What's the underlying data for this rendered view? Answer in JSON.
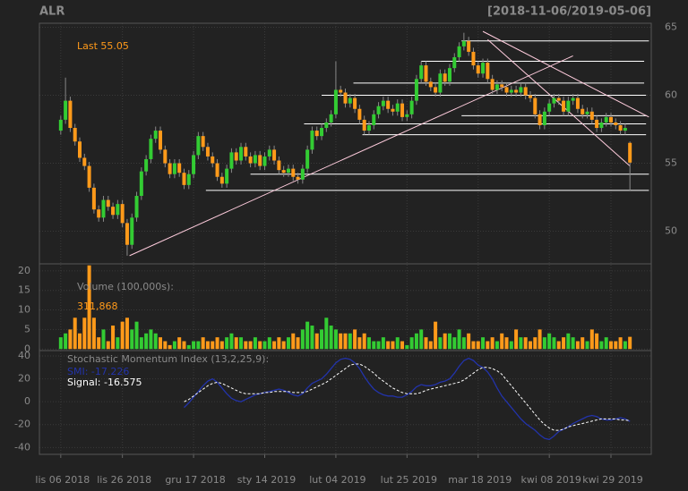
{
  "chart_data": {
    "type": "candlestick",
    "title": "ALR",
    "subtitle": "[2018-11-06/2019-05-06]",
    "last_label": "Last 55.05",
    "up_color": "#33cc33",
    "down_color": "#ff9a1a",
    "grid": true,
    "open": [
      57.4,
      58.2,
      59.6,
      57.6,
      56.6,
      55.4,
      54.8,
      53.2,
      51.6,
      51.0,
      52.3,
      51.8,
      51.2,
      52.0,
      50.6,
      49.0,
      51.0,
      52.6,
      54.4,
      55.3,
      56.8,
      57.4,
      56.0,
      55.0,
      54.2,
      55.0,
      54.3,
      53.4,
      54.2,
      55.6,
      57.0,
      56.2,
      55.5,
      55.0,
      54.0,
      53.5,
      54.6,
      55.8,
      55.2,
      56.2,
      55.5,
      55.0,
      55.6,
      54.8,
      55.5,
      56.0,
      55.2,
      54.5,
      54.3,
      54.6,
      54.0,
      53.8,
      54.6,
      56.0,
      57.4,
      57.0,
      57.6,
      58.0,
      58.6,
      60.4,
      60.2,
      59.4,
      59.8,
      59.0,
      58.2,
      57.4,
      57.8,
      58.6,
      59.2,
      59.6,
      59.0,
      58.8,
      59.4,
      58.4,
      58.6,
      59.6,
      61.2,
      62.2,
      61.0,
      60.6,
      60.2,
      61.6,
      61.0,
      62.0,
      62.8,
      63.6,
      64.0,
      63.2,
      62.2,
      61.6,
      62.4,
      61.2,
      60.4,
      60.8,
      60.6,
      60.2,
      60.4,
      60.2,
      60.6,
      60.0,
      59.8,
      58.6,
      57.8,
      58.8,
      59.4,
      59.8,
      59.6,
      58.8,
      59.6,
      59.8,
      59.0,
      58.6,
      58.8,
      58.2,
      57.6,
      58.0,
      58.4,
      58.0,
      57.8,
      57.4,
      56.5
    ],
    "high": [
      58.5,
      61.3,
      59.9,
      57.9,
      56.9,
      55.7,
      55.1,
      53.5,
      51.9,
      52.6,
      52.6,
      52.1,
      52.3,
      52.3,
      50.9,
      51.3,
      52.9,
      54.7,
      55.6,
      57.1,
      57.7,
      57.7,
      56.3,
      55.3,
      55.3,
      55.3,
      54.6,
      54.5,
      55.9,
      57.3,
      57.3,
      56.5,
      55.8,
      55.3,
      54.3,
      54.9,
      56.1,
      56.1,
      56.5,
      56.5,
      55.8,
      55.9,
      55.9,
      55.8,
      56.3,
      56.3,
      55.5,
      54.8,
      54.9,
      54.9,
      54.3,
      54.9,
      56.3,
      57.7,
      57.7,
      57.9,
      58.3,
      58.9,
      62.5,
      60.7,
      60.5,
      60.1,
      60.1,
      59.3,
      58.5,
      58.1,
      58.9,
      59.5,
      59.9,
      59.9,
      59.3,
      59.7,
      59.7,
      58.9,
      59.9,
      61.5,
      62.5,
      62.5,
      61.3,
      60.9,
      61.9,
      61.9,
      62.3,
      63.1,
      63.9,
      64.6,
      64.3,
      63.5,
      62.5,
      62.7,
      62.7,
      61.5,
      61.1,
      61.1,
      60.9,
      60.7,
      60.7,
      60.9,
      60.9,
      60.3,
      60.1,
      58.9,
      59.1,
      59.7,
      60.1,
      60.1,
      59.9,
      59.9,
      60.1,
      60.1,
      59.3,
      59.1,
      59.1,
      58.5,
      58.3,
      58.7,
      58.7,
      58.3,
      58.1,
      57.9,
      56.6
    ],
    "low": [
      57.1,
      57.9,
      57.3,
      56.3,
      55.1,
      54.5,
      52.9,
      51.3,
      50.7,
      50.7,
      51.5,
      50.9,
      50.9,
      50.3,
      48.2,
      48.7,
      50.7,
      52.3,
      54.1,
      55.0,
      56.5,
      55.7,
      54.7,
      53.9,
      53.9,
      54.0,
      53.1,
      53.1,
      53.9,
      55.3,
      55.9,
      55.2,
      54.7,
      53.7,
      53.2,
      53.2,
      54.3,
      54.9,
      54.9,
      55.2,
      54.7,
      54.7,
      54.5,
      54.5,
      55.2,
      54.9,
      54.2,
      54.0,
      54.0,
      53.7,
      53.5,
      53.5,
      54.3,
      55.7,
      56.7,
      56.7,
      57.3,
      57.7,
      58.3,
      59.9,
      59.1,
      59.1,
      58.7,
      57.9,
      57.1,
      57.1,
      57.5,
      58.3,
      58.9,
      58.7,
      58.5,
      58.5,
      58.1,
      58.1,
      58.3,
      59.3,
      60.9,
      60.7,
      60.3,
      59.9,
      59.9,
      60.7,
      60.7,
      61.7,
      62.5,
      63.3,
      62.9,
      61.9,
      61.3,
      61.3,
      60.9,
      60.1,
      60.1,
      60.3,
      59.9,
      59.9,
      59.9,
      59.9,
      59.7,
      59.5,
      58.3,
      57.5,
      57.5,
      58.5,
      59.1,
      59.3,
      58.5,
      58.5,
      59.3,
      58.7,
      58.3,
      58.3,
      57.9,
      57.3,
      57.3,
      57.7,
      57.7,
      57.5,
      57.1,
      57.1,
      53.0
    ],
    "close": [
      58.2,
      59.6,
      57.6,
      56.6,
      55.4,
      54.8,
      53.2,
      51.6,
      51.0,
      52.3,
      51.8,
      51.2,
      52.0,
      50.6,
      49.0,
      51.0,
      52.6,
      54.4,
      55.3,
      56.8,
      57.4,
      56.0,
      55.0,
      54.2,
      55.0,
      54.3,
      53.4,
      54.2,
      55.6,
      57.0,
      56.2,
      55.5,
      55.0,
      54.0,
      53.5,
      54.6,
      55.8,
      55.2,
      56.2,
      55.5,
      55.0,
      55.6,
      54.8,
      55.5,
      56.0,
      55.2,
      54.5,
      54.3,
      54.6,
      54.0,
      53.8,
      54.6,
      56.0,
      57.4,
      57.0,
      57.6,
      58.0,
      58.6,
      60.4,
      60.2,
      59.4,
      59.8,
      59.0,
      58.2,
      57.4,
      57.8,
      58.6,
      59.2,
      59.6,
      59.0,
      58.8,
      59.4,
      58.4,
      58.6,
      59.6,
      61.2,
      62.2,
      61.0,
      60.6,
      60.2,
      61.6,
      61.0,
      62.0,
      62.8,
      63.6,
      64.0,
      63.2,
      62.2,
      61.6,
      62.4,
      61.2,
      60.4,
      60.8,
      60.6,
      60.2,
      60.4,
      60.2,
      60.6,
      60.0,
      59.8,
      58.6,
      57.8,
      58.8,
      59.4,
      59.8,
      59.6,
      58.8,
      59.6,
      59.8,
      59.0,
      58.6,
      58.8,
      58.2,
      57.6,
      58.0,
      58.4,
      58.0,
      57.8,
      57.4,
      57.6,
      55.05
    ],
    "ylim": [
      47.6,
      65.3
    ],
    "yticks": [
      50,
      55,
      60,
      65
    ],
    "xlim": [
      -4.5,
      124.5
    ],
    "xticks": [
      {
        "value": 0,
        "label": "lis 06 2018"
      },
      {
        "value": 13,
        "label": "lis 26 2018"
      },
      {
        "value": 28,
        "label": "gru 17 2018"
      },
      {
        "value": 43,
        "label": "sty 14 2019"
      },
      {
        "value": 58,
        "label": "lut 04 2019"
      },
      {
        "value": 73,
        "label": "lut 25 2019"
      },
      {
        "value": 88,
        "label": "mar 18 2019"
      },
      {
        "value": 103,
        "label": "kwi 08 2019"
      },
      {
        "value": 116,
        "label": "kwi 29 2019"
      }
    ],
    "trendlines": [
      {
        "color": "#ffccdd",
        "from": [
          14.5,
          48.2
        ],
        "to": [
          108,
          62.9
        ]
      },
      {
        "color": "#ffccdd",
        "from": [
          89,
          64.7
        ],
        "to": [
          124,
          58.4
        ]
      },
      {
        "color": "#ffccdd",
        "from": [
          90,
          64.1
        ],
        "to": [
          120,
          54.8
        ]
      }
    ],
    "hlines": [
      {
        "price": 64.0,
        "start": 84.5,
        "end": 124
      },
      {
        "price": 62.5,
        "start": 76,
        "end": 123
      },
      {
        "price": 60.9,
        "start": 61.7,
        "end": 123
      },
      {
        "price": 60.0,
        "start": 55,
        "end": 123.4
      },
      {
        "price": 58.5,
        "start": 84.5,
        "end": 123.6
      },
      {
        "price": 57.9,
        "start": 51.3,
        "end": 123.4
      },
      {
        "price": 57.1,
        "start": 63.6,
        "end": 123.4
      },
      {
        "price": 54.2,
        "start": 40,
        "end": 124
      },
      {
        "price": 53.0,
        "start": 30.6,
        "end": 124
      }
    ],
    "volume": {
      "label": "Volume (100,000s):",
      "value_label": "311,868",
      "values": [
        3,
        4,
        5,
        8,
        4,
        8,
        21.4,
        8,
        3,
        5,
        2,
        6,
        3,
        7,
        8,
        5,
        7,
        3,
        4,
        5,
        4,
        3,
        2,
        1,
        2,
        3,
        2,
        1,
        2,
        2,
        3,
        2,
        2,
        3,
        2,
        3,
        4,
        3,
        3,
        2,
        2,
        3,
        2,
        2,
        3,
        2,
        3,
        2,
        3,
        4,
        3,
        5,
        7,
        6,
        4,
        5,
        8,
        6,
        5,
        4,
        4,
        4,
        5,
        3,
        4,
        3,
        2,
        2,
        3,
        2,
        2,
        3,
        2,
        1,
        3,
        4,
        5,
        3,
        2,
        7,
        3,
        4,
        4,
        3,
        5,
        3,
        4,
        2,
        2,
        3,
        2,
        3,
        2,
        4,
        3,
        2,
        5,
        3,
        3,
        2,
        3,
        5,
        3,
        4,
        3,
        2,
        3,
        4,
        3,
        2,
        3,
        2,
        5,
        4,
        2,
        3,
        2,
        2,
        3,
        2,
        3.11868
      ],
      "ylim": [
        -0.4,
        21.8
      ],
      "yticks": [
        0,
        5,
        10,
        15,
        20
      ]
    },
    "smi": {
      "label": "Stochastic Momentum Index (13,2,25,9):",
      "ylim": [
        -46,
        44.7
      ],
      "yticks": [
        -40,
        -20,
        0,
        20,
        40
      ],
      "series": [
        {
          "name": "SMI: -17.226",
          "color": "#2233aa",
          "dash": false,
          "values": [
            null,
            null,
            null,
            null,
            null,
            null,
            null,
            null,
            null,
            null,
            null,
            null,
            null,
            null,
            null,
            null,
            null,
            null,
            null,
            null,
            null,
            null,
            null,
            null,
            null,
            null,
            -5,
            -1,
            4,
            9,
            14,
            18,
            20,
            17,
            12,
            7,
            3,
            1,
            0,
            2,
            4,
            6,
            7,
            8,
            9,
            10,
            11,
            10,
            8,
            6,
            5,
            7,
            12,
            16,
            18,
            20,
            24,
            29,
            34,
            37,
            38,
            37,
            34,
            29,
            22,
            16,
            11,
            8,
            6,
            5,
            5,
            4,
            4,
            6,
            9,
            13,
            15,
            14,
            14,
            15,
            17,
            18,
            20,
            25,
            31,
            36,
            38,
            36,
            32,
            30,
            26,
            20,
            12,
            5,
            0,
            -5,
            -10,
            -15,
            -19,
            -22,
            -25,
            -29,
            -32,
            -33,
            -30,
            -26,
            -24,
            -22,
            -19,
            -17,
            -15,
            -13,
            -12,
            -13,
            -15,
            -16,
            -16,
            -15,
            -14,
            -15,
            -17.226
          ]
        },
        {
          "name": "Signal: -16.575",
          "color": "#ffffff",
          "dash": true,
          "values": [
            null,
            null,
            null,
            null,
            null,
            null,
            null,
            null,
            null,
            null,
            null,
            null,
            null,
            null,
            null,
            null,
            null,
            null,
            null,
            null,
            null,
            null,
            null,
            null,
            null,
            null,
            0,
            2,
            5,
            8,
            11,
            14,
            16,
            17,
            16,
            14,
            12,
            10,
            8,
            7,
            7,
            7,
            7,
            8,
            8,
            9,
            9,
            9,
            9,
            8,
            8,
            8,
            9,
            11,
            13,
            15,
            17,
            20,
            23,
            26,
            29,
            32,
            33,
            33,
            31,
            28,
            25,
            21,
            18,
            15,
            12,
            10,
            8,
            7,
            7,
            7,
            8,
            10,
            11,
            12,
            13,
            14,
            15,
            16,
            17,
            19,
            22,
            25,
            28,
            30,
            30,
            29,
            27,
            24,
            19,
            14,
            9,
            4,
            -1,
            -6,
            -11,
            -16,
            -20,
            -23,
            -25,
            -25,
            -24,
            -22,
            -21,
            -20,
            -19,
            -18,
            -17,
            -16,
            -15,
            -15,
            -15,
            -15,
            -16,
            -16,
            -16.575
          ]
        }
      ]
    }
  }
}
